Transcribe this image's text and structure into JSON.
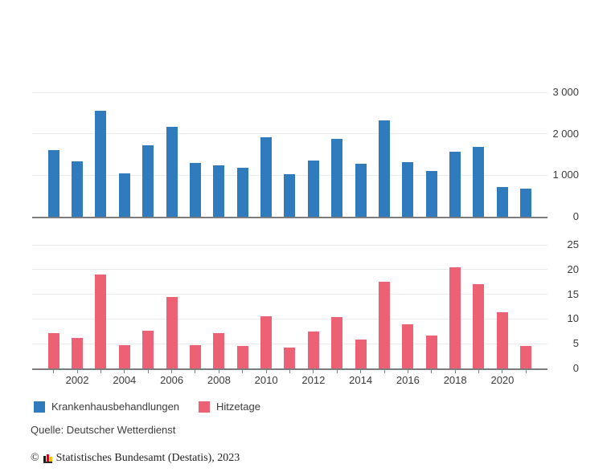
{
  "colors": {
    "series_blue": "#2f7bbd",
    "series_red": "#ec6173",
    "grid": "#ebebeb",
    "axis": "#7d7d7d",
    "tick_text": "#3a3a3a"
  },
  "x_axis": {
    "years": [
      2001,
      2002,
      2003,
      2004,
      2005,
      2006,
      2007,
      2008,
      2009,
      2010,
      2011,
      2012,
      2013,
      2014,
      2015,
      2016,
      2017,
      2018,
      2019,
      2020,
      2021
    ],
    "visible_tick_labels": [
      "2002",
      "2004",
      "2006",
      "2008",
      "2010",
      "2012",
      "2014",
      "2016",
      "2018",
      "2020"
    ]
  },
  "chart_data": [
    {
      "type": "bar",
      "name": "krankenhausbehandlungen",
      "title": "Krankenhausbehandlungen",
      "color": "#2f7bbd",
      "x": [
        2001,
        2002,
        2003,
        2004,
        2005,
        2006,
        2007,
        2008,
        2009,
        2010,
        2011,
        2012,
        2013,
        2014,
        2015,
        2016,
        2017,
        2018,
        2019,
        2020,
        2021
      ],
      "values": [
        1600,
        1330,
        2560,
        1050,
        1730,
        2170,
        1300,
        1240,
        1190,
        1920,
        1030,
        1360,
        1880,
        1270,
        2320,
        1320,
        1110,
        1570,
        1690,
        710,
        680
      ],
      "ylim": [
        0,
        3000
      ],
      "yticks": [
        0,
        1000,
        2000,
        3000
      ],
      "ytick_labels": [
        "0",
        "1 000",
        "2 000",
        "3 000"
      ],
      "grid": true,
      "legend_position": "bottom"
    },
    {
      "type": "bar",
      "name": "hitzetage",
      "title": "Hitzetage",
      "color": "#ec6173",
      "x": [
        2001,
        2002,
        2003,
        2004,
        2005,
        2006,
        2007,
        2008,
        2009,
        2010,
        2011,
        2012,
        2013,
        2014,
        2015,
        2016,
        2017,
        2018,
        2019,
        2020,
        2021
      ],
      "values": [
        7.2,
        6.2,
        19.0,
        4.7,
        7.6,
        14.4,
        4.7,
        7.1,
        4.5,
        10.6,
        4.3,
        7.5,
        10.4,
        5.9,
        17.6,
        9.0,
        6.7,
        20.4,
        17.0,
        11.3,
        4.5
      ],
      "ylim": [
        0,
        25
      ],
      "yticks": [
        0,
        5,
        10,
        15,
        20,
        25
      ],
      "ytick_labels": [
        "0",
        "5",
        "10",
        "15",
        "20",
        "25"
      ],
      "grid": true,
      "legend_position": "bottom"
    }
  ],
  "legend": {
    "items": [
      {
        "label": "Krankenhausbehandlungen",
        "color": "#2f7bbd"
      },
      {
        "label": "Hitzetage",
        "color": "#ec6173"
      }
    ]
  },
  "source": "Quelle: Deutscher Wetterdienst",
  "footer": {
    "copyright": "©",
    "text": "Statistisches Bundesamt (Destatis), 2023"
  }
}
